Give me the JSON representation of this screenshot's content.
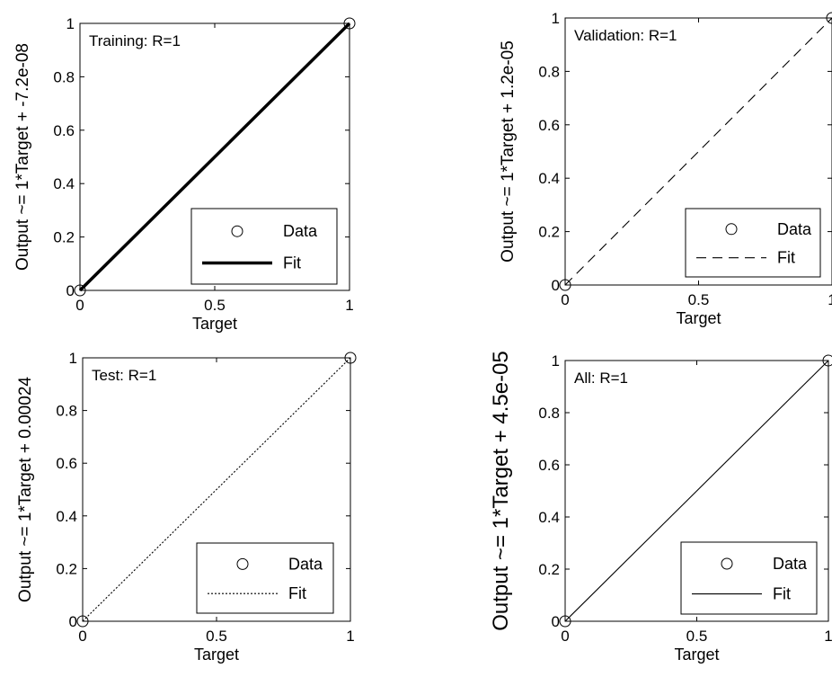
{
  "chart_data": [
    {
      "type": "scatter",
      "name": "Training",
      "annotation": "Training: R=1",
      "xlabel": "Target",
      "ylabel": "Output ~= 1*Target + -7.2e-08",
      "xlim": [
        0,
        1
      ],
      "ylim": [
        0,
        1
      ],
      "xticks": [
        "0",
        "0.5",
        "1"
      ],
      "yticks": [
        "0",
        "0.2",
        "0.4",
        "0.6",
        "0.8",
        "1"
      ],
      "data_points": [
        [
          0,
          0
        ],
        [
          1,
          1
        ]
      ],
      "fit": {
        "slope": 1,
        "intercept": -7.2e-08,
        "style": "solid-thick"
      },
      "legend": {
        "position": "bottom-right",
        "entries": [
          "Data",
          "Fit"
        ]
      }
    },
    {
      "type": "scatter",
      "name": "Validation",
      "annotation": "Validation: R=1",
      "xlabel": "Target",
      "ylabel": "Output ~= 1*Target + 1.2e-05",
      "xlim": [
        0,
        1
      ],
      "ylim": [
        0,
        1
      ],
      "xticks": [
        "0",
        "0.5",
        "1"
      ],
      "yticks": [
        "0",
        "0.2",
        "0.4",
        "0.6",
        "0.8",
        "1"
      ],
      "data_points": [
        [
          0,
          0
        ],
        [
          1,
          1
        ]
      ],
      "fit": {
        "slope": 1,
        "intercept": 1.2e-05,
        "style": "dashed"
      },
      "legend": {
        "position": "bottom-right",
        "entries": [
          "Data",
          "Fit"
        ]
      }
    },
    {
      "type": "scatter",
      "name": "Test",
      "annotation": "Test: R=1",
      "xlabel": "Target",
      "ylabel": "Output ~= 1*Target + 0.00024",
      "xlim": [
        0,
        1
      ],
      "ylim": [
        0,
        1
      ],
      "xticks": [
        "0",
        "0.5",
        "1"
      ],
      "yticks": [
        "0",
        "0.2",
        "0.4",
        "0.6",
        "0.8",
        "1"
      ],
      "data_points": [
        [
          0,
          0
        ],
        [
          1,
          1
        ]
      ],
      "fit": {
        "slope": 1,
        "intercept": 0.00024,
        "style": "dotted"
      },
      "legend": {
        "position": "bottom-right",
        "entries": [
          "Data",
          "Fit"
        ]
      }
    },
    {
      "type": "scatter",
      "name": "All",
      "annotation": "All: R=1",
      "xlabel": "Target",
      "ylabel": "Output ~= 1*Target + 4.5e-05",
      "xlim": [
        0,
        1
      ],
      "ylim": [
        0,
        1
      ],
      "xticks": [
        "0",
        "0.5",
        "1"
      ],
      "yticks": [
        "0",
        "0.2",
        "0.4",
        "0.6",
        "0.8",
        "1"
      ],
      "data_points": [
        [
          0,
          0
        ],
        [
          1,
          1
        ]
      ],
      "fit": {
        "slope": 1,
        "intercept": 4.5e-05,
        "style": "solid-thin"
      },
      "legend": {
        "position": "bottom-right",
        "entries": [
          "Data",
          "Fit"
        ]
      }
    }
  ]
}
